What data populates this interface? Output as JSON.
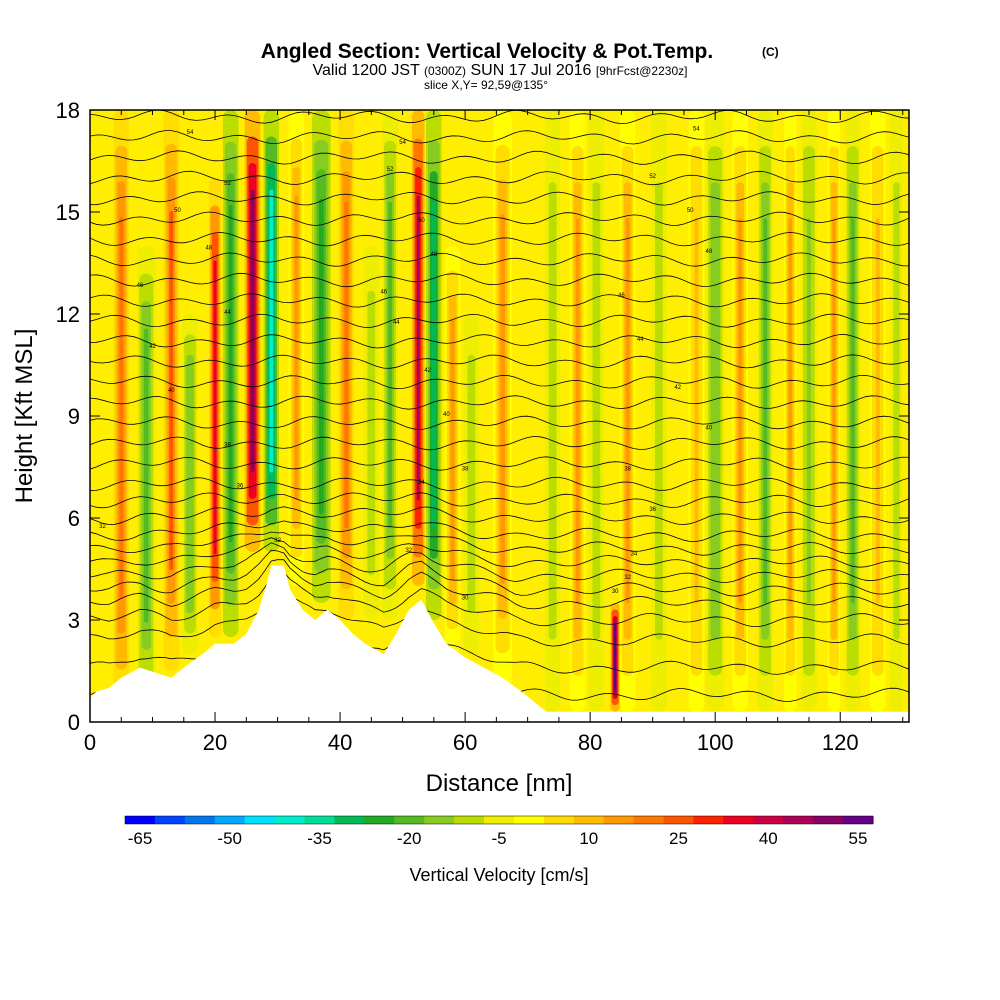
{
  "chart_data": {
    "type": "heatmap",
    "title": "Angled Section: Vertical Velocity & Pot.Temp.",
    "title_units": "(C)",
    "subtitle": {
      "valid": "Valid 1200 JST",
      "utc": "(0300Z)",
      "date": "SUN 17 Jul 2016",
      "fcst": "[9hrFcst@2230z]"
    },
    "slice_info": "slice X,Y= 92,59@135°",
    "xlabel": "Distance [nm]",
    "ylabel": "Height [Kft MSL]",
    "xlim": [
      0,
      131
    ],
    "ylim": [
      0,
      18
    ],
    "x_ticks": [
      0,
      20,
      40,
      60,
      80,
      100,
      120
    ],
    "y_ticks": [
      0,
      3,
      6,
      9,
      12,
      15,
      18
    ],
    "colorbar": {
      "label": "Vertical Velocity [cm/s]",
      "tick_labels": [
        "-65",
        "-50",
        "-35",
        "-20",
        "-5",
        "10",
        "25",
        "40",
        "55"
      ],
      "colors": [
        "#0000ff",
        "#0044ff",
        "#0077ee",
        "#00aaff",
        "#00e0ff",
        "#00eecc",
        "#00dd99",
        "#00bb55",
        "#22aa22",
        "#55bb22",
        "#88cc22",
        "#bbdd00",
        "#eeee00",
        "#ffff00",
        "#ffdd00",
        "#ffbb00",
        "#ff9900",
        "#ff7700",
        "#ff5500",
        "#ff2200",
        "#ee0022",
        "#cc0044",
        "#aa0055",
        "#880066",
        "#660088"
      ]
    },
    "terrain": [
      [
        0,
        0.7
      ],
      [
        1,
        0.9
      ],
      [
        3,
        1.0
      ],
      [
        5,
        1.3
      ],
      [
        8,
        1.6
      ],
      [
        13,
        1.3
      ],
      [
        15,
        1.6
      ],
      [
        18,
        2.0
      ],
      [
        20,
        2.3
      ],
      [
        23,
        2.3
      ],
      [
        25,
        2.6
      ],
      [
        27,
        3.3
      ],
      [
        28,
        3.9
      ],
      [
        29,
        4.6
      ],
      [
        31,
        4.6
      ],
      [
        32,
        3.9
      ],
      [
        34,
        3.3
      ],
      [
        36,
        3.0
      ],
      [
        38,
        3.3
      ],
      [
        40,
        3.0
      ],
      [
        42,
        2.6
      ],
      [
        44,
        2.3
      ],
      [
        47,
        2.0
      ],
      [
        49,
        2.6
      ],
      [
        51,
        3.3
      ],
      [
        53,
        3.6
      ],
      [
        55,
        2.9
      ],
      [
        57,
        2.3
      ],
      [
        60,
        1.9
      ],
      [
        63,
        1.6
      ],
      [
        66,
        1.3
      ],
      [
        69,
        0.9
      ],
      [
        71,
        0.6
      ],
      [
        73,
        0.3
      ],
      [
        131,
        0.3
      ]
    ],
    "columns": [
      {
        "x": 5,
        "width": 2.5,
        "y0": 0.5,
        "y1": 18,
        "value": 20
      },
      {
        "x": 9,
        "width": 3,
        "y0": 0.5,
        "y1": 14,
        "value": -20
      },
      {
        "x": 13,
        "width": 2.5,
        "y0": 1.5,
        "y1": 18,
        "value": 25
      },
      {
        "x": 16,
        "width": 2.5,
        "y0": 2,
        "y1": 12,
        "value": -15
      },
      {
        "x": 20,
        "width": 2,
        "y0": 2.5,
        "y1": 16,
        "value": 35
      },
      {
        "x": 22.5,
        "width": 2.5,
        "y0": 2.5,
        "y1": 18,
        "value": -25
      },
      {
        "x": 26,
        "width": 2.5,
        "y0": 5,
        "y1": 18,
        "value": 50
      },
      {
        "x": 29,
        "width": 2.5,
        "y0": 5,
        "y1": 18,
        "value": -40
      },
      {
        "x": 33,
        "width": 2.5,
        "y0": 4,
        "y1": 18,
        "value": 15
      },
      {
        "x": 37,
        "width": 3,
        "y0": 3.5,
        "y1": 18,
        "value": -25
      },
      {
        "x": 41,
        "width": 2.5,
        "y0": 3,
        "y1": 18,
        "value": 20
      },
      {
        "x": 45,
        "width": 2.5,
        "y0": 3,
        "y1": 14,
        "value": -10
      },
      {
        "x": 48,
        "width": 2.5,
        "y0": 3,
        "y1": 18,
        "value": -20
      },
      {
        "x": 52.5,
        "width": 2,
        "y0": 4,
        "y1": 18,
        "value": 45
      },
      {
        "x": 55,
        "width": 2.5,
        "y0": 3,
        "y1": 18,
        "value": -30
      },
      {
        "x": 58,
        "width": 2.5,
        "y0": 2,
        "y1": 14,
        "value": 15
      },
      {
        "x": 61,
        "width": 2.5,
        "y0": 2,
        "y1": 12,
        "value": -10
      },
      {
        "x": 66,
        "width": 3,
        "y0": 1,
        "y1": 18,
        "value": 15
      },
      {
        "x": 74,
        "width": 2.5,
        "y0": 0.3,
        "y1": 18,
        "value": -8
      },
      {
        "x": 78,
        "width": 2.5,
        "y0": 0.3,
        "y1": 18,
        "value": 18
      },
      {
        "x": 81,
        "width": 2.5,
        "y0": 0.3,
        "y1": 18,
        "value": -10
      },
      {
        "x": 84,
        "width": 1.5,
        "y0": 0.3,
        "y1": 3.5,
        "value": 55
      },
      {
        "x": 86,
        "width": 2.5,
        "y0": 0.3,
        "y1": 18,
        "value": 15
      },
      {
        "x": 91,
        "width": 2.5,
        "y0": 0.3,
        "y1": 18,
        "value": -8
      },
      {
        "x": 97,
        "width": 2.5,
        "y0": 0.3,
        "y1": 18,
        "value": 12
      },
      {
        "x": 100,
        "width": 3,
        "y0": 0.3,
        "y1": 18,
        "value": -15
      },
      {
        "x": 104,
        "width": 2.5,
        "y0": 0.3,
        "y1": 18,
        "value": 15
      },
      {
        "x": 108,
        "width": 2.5,
        "y0": 0.3,
        "y1": 18,
        "value": -20
      },
      {
        "x": 112,
        "width": 2,
        "y0": 0.3,
        "y1": 18,
        "value": 18
      },
      {
        "x": 115,
        "width": 2.5,
        "y0": 0.3,
        "y1": 18,
        "value": -12
      },
      {
        "x": 119,
        "width": 2,
        "y0": 0.3,
        "y1": 18,
        "value": 15
      },
      {
        "x": 122,
        "width": 2.5,
        "y0": 0.3,
        "y1": 18,
        "value": -20
      },
      {
        "x": 126,
        "width": 2.5,
        "y0": 0.3,
        "y1": 18,
        "value": 12
      },
      {
        "x": 129,
        "width": 2,
        "y0": 0.3,
        "y1": 18,
        "value": -8
      }
    ],
    "isentrope_levels": [
      0.8,
      1.6,
      2.4,
      3.0,
      3.5,
      3.9,
      4.3,
      4.7,
      5.1,
      5.5,
      6.0,
      6.5,
      7.0,
      7.6,
      8.2,
      8.8,
      9.4,
      10.0,
      10.6,
      11.2,
      11.8,
      12.4,
      13.0,
      13.6,
      14.2,
      14.8,
      15.4,
      16.0,
      16.6,
      17.2,
      17.8
    ],
    "contour_labels": [
      {
        "x": 2,
        "y": 5.7,
        "text": "32"
      },
      {
        "x": 30,
        "y": 5.3,
        "text": "32"
      },
      {
        "x": 51,
        "y": 5.0,
        "text": "32"
      },
      {
        "x": 60,
        "y": 3.6,
        "text": "30"
      },
      {
        "x": 84,
        "y": 3.8,
        "text": "30"
      },
      {
        "x": 86,
        "y": 4.2,
        "text": "32"
      },
      {
        "x": 87,
        "y": 4.9,
        "text": "34"
      },
      {
        "x": 90,
        "y": 6.2,
        "text": "36"
      },
      {
        "x": 86,
        "y": 7.4,
        "text": "38"
      },
      {
        "x": 24,
        "y": 6.9,
        "text": "36"
      },
      {
        "x": 53,
        "y": 7.0,
        "text": "34"
      },
      {
        "x": 60,
        "y": 7.4,
        "text": "38"
      },
      {
        "x": 22,
        "y": 8.1,
        "text": "38"
      },
      {
        "x": 57,
        "y": 9.0,
        "text": "40"
      },
      {
        "x": 99,
        "y": 8.6,
        "text": "40"
      },
      {
        "x": 13,
        "y": 9.7,
        "text": "40"
      },
      {
        "x": 54,
        "y": 10.3,
        "text": "42"
      },
      {
        "x": 94,
        "y": 9.8,
        "text": "42"
      },
      {
        "x": 10,
        "y": 11.0,
        "text": "42"
      },
      {
        "x": 88,
        "y": 11.2,
        "text": "44"
      },
      {
        "x": 22,
        "y": 12.0,
        "text": "44"
      },
      {
        "x": 49,
        "y": 11.7,
        "text": "44"
      },
      {
        "x": 8,
        "y": 12.8,
        "text": "46"
      },
      {
        "x": 85,
        "y": 12.5,
        "text": "46"
      },
      {
        "x": 47,
        "y": 12.6,
        "text": "46"
      },
      {
        "x": 19,
        "y": 13.9,
        "text": "48"
      },
      {
        "x": 55,
        "y": 13.7,
        "text": "48"
      },
      {
        "x": 99,
        "y": 13.8,
        "text": "48"
      },
      {
        "x": 14,
        "y": 15.0,
        "text": "50"
      },
      {
        "x": 53,
        "y": 14.7,
        "text": "50"
      },
      {
        "x": 96,
        "y": 15.0,
        "text": "50"
      },
      {
        "x": 22,
        "y": 15.8,
        "text": "52"
      },
      {
        "x": 48,
        "y": 16.2,
        "text": "52"
      },
      {
        "x": 90,
        "y": 16.0,
        "text": "52"
      },
      {
        "x": 16,
        "y": 17.3,
        "text": "54"
      },
      {
        "x": 50,
        "y": 17.0,
        "text": "54"
      },
      {
        "x": 97,
        "y": 17.4,
        "text": "54"
      }
    ]
  }
}
